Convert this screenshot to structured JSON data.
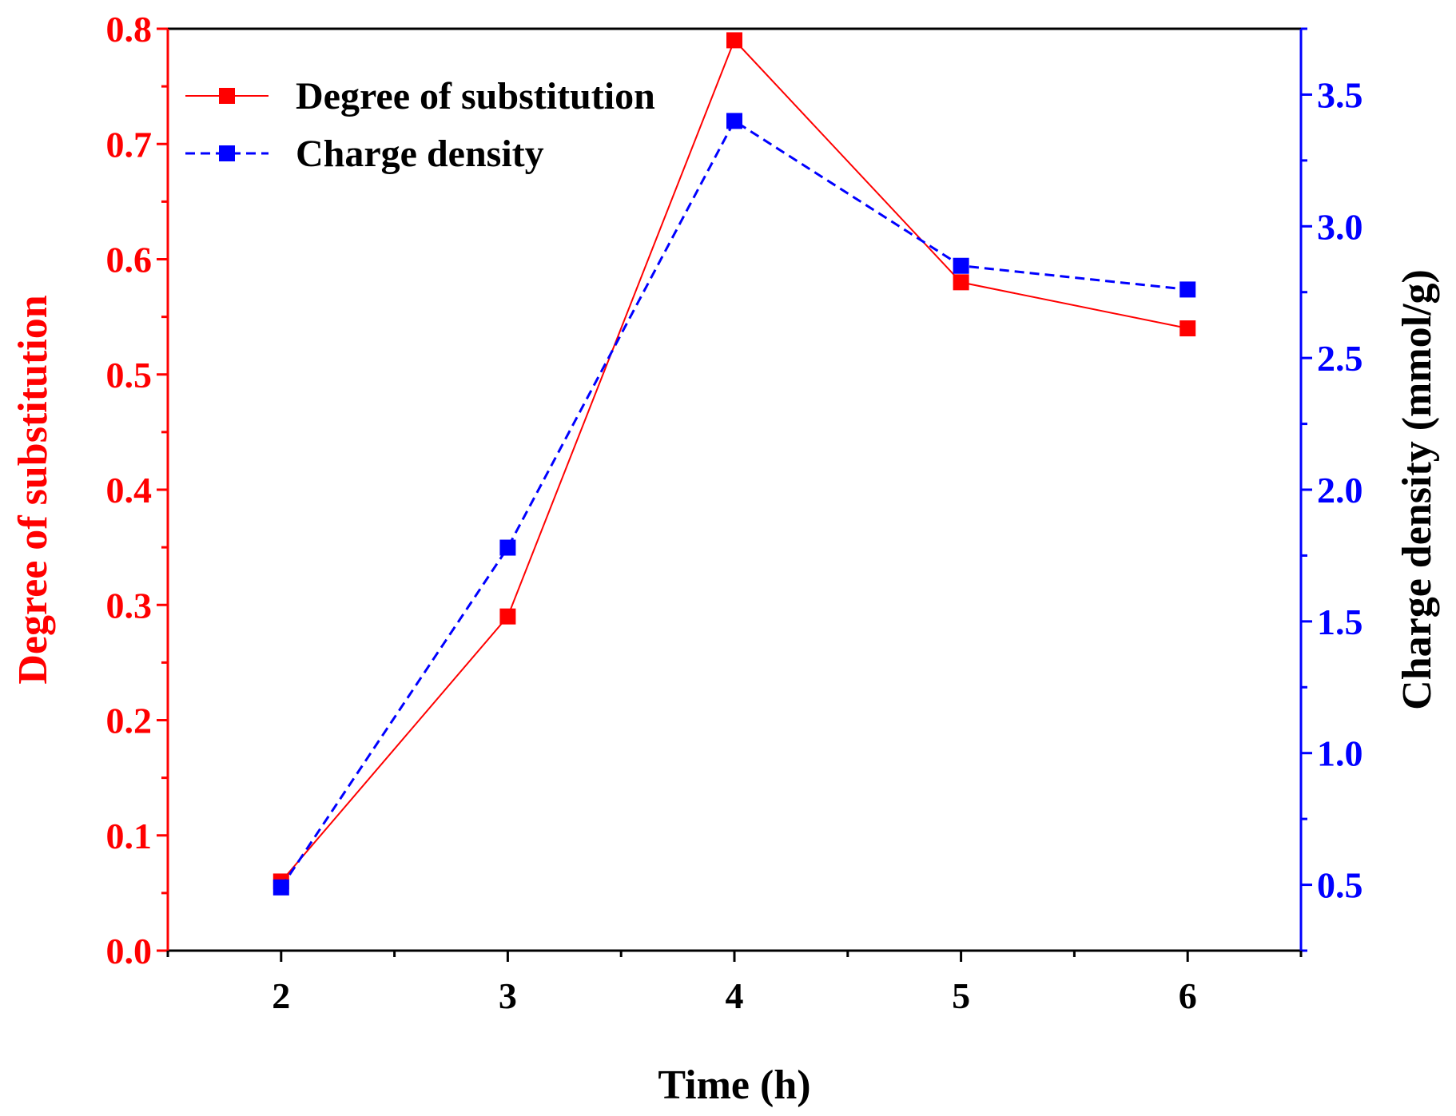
{
  "chart_data": {
    "type": "line",
    "x": [
      2,
      3,
      4,
      5,
      6
    ],
    "xlabel": "Time (h)",
    "xlim": [
      1.5,
      6.5
    ],
    "xticks": [
      2,
      3,
      4,
      5,
      6
    ],
    "xtick_labels": [
      "2",
      "3",
      "4",
      "5",
      "6"
    ],
    "y_left": {
      "label": "Degree of substitution",
      "lim": [
        0.0,
        0.8
      ],
      "ticks": [
        0.0,
        0.1,
        0.2,
        0.3,
        0.4,
        0.5,
        0.6,
        0.7,
        0.8
      ],
      "tick_labels": [
        "0.0",
        "0.1",
        "0.2",
        "0.3",
        "0.4",
        "0.5",
        "0.6",
        "0.7",
        "0.8"
      ],
      "color": "#ff0000"
    },
    "y_right": {
      "label": "Charge density (mmol/g)",
      "lim": [
        0.25,
        3.75
      ],
      "ticks": [
        0.5,
        1.0,
        1.5,
        2.0,
        2.5,
        3.0,
        3.5
      ],
      "tick_labels": [
        "0.5",
        "1.0",
        "1.5",
        "2.0",
        "2.5",
        "3.0",
        "3.5"
      ],
      "color": "#0000ff"
    },
    "series": [
      {
        "name": "Degree of substitution",
        "axis": "left",
        "values": [
          0.06,
          0.29,
          0.79,
          0.58,
          0.54
        ],
        "color": "#ff0000",
        "line_style": "solid",
        "marker": "square"
      },
      {
        "name": "Charge density",
        "axis": "right",
        "values": [
          0.49,
          1.78,
          3.4,
          2.85,
          2.76
        ],
        "color": "#0000ff",
        "line_style": "dashed",
        "marker": "square"
      }
    ],
    "legend": {
      "position": "top-left",
      "entries": [
        "Degree of substitution",
        "Charge density"
      ]
    },
    "grid": false
  }
}
